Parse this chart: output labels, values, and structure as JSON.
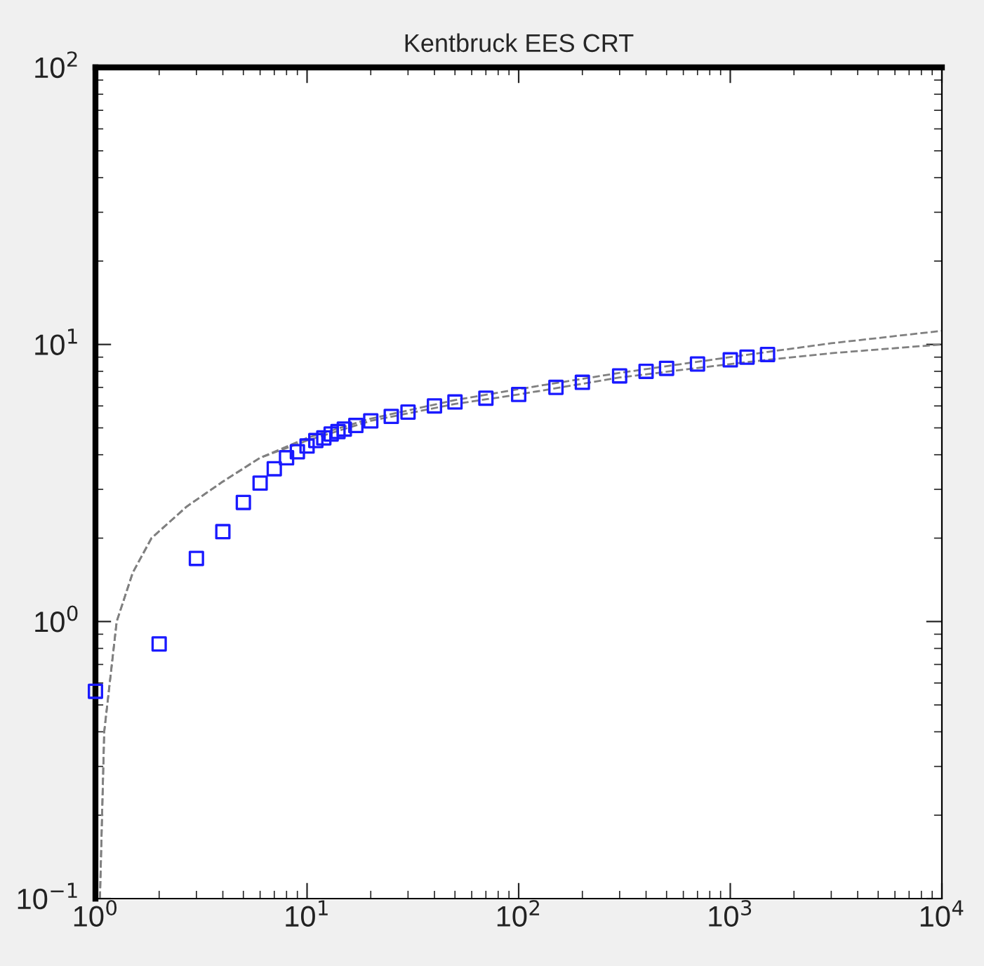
{
  "chart_data": {
    "type": "scatter",
    "title": "Kentbruck EES CRT",
    "log": "xy",
    "grid": false,
    "legend": false,
    "xlim": [
      1,
      10000
    ],
    "ylim": [
      0.1,
      100
    ],
    "xticks": [
      {
        "value": 1,
        "label": "10$^{0}$"
      },
      {
        "value": 10,
        "label": "10$^{1}$"
      },
      {
        "value": 100,
        "label": "10$^{2}$"
      },
      {
        "value": 1000,
        "label": "10$^{3}$"
      },
      {
        "value": 10000,
        "label": "10$^{4}$"
      }
    ],
    "yticks": [
      {
        "value": 0.1,
        "label": "10$^{−1}$"
      },
      {
        "value": 1,
        "label": "10$^{0}$"
      },
      {
        "value": 10,
        "label": "10$^{1}$"
      },
      {
        "value": 100,
        "label": "10$^{2}$"
      }
    ],
    "series": [
      {
        "marker": "square",
        "color": "#1a1aff",
        "x": [
          1,
          2,
          3,
          4,
          5,
          6,
          7,
          8,
          9,
          10,
          11,
          12,
          13,
          14,
          15,
          17,
          20,
          25,
          30,
          40,
          50,
          70,
          100,
          150,
          200,
          300,
          400,
          500,
          700,
          1000,
          1200,
          1500
        ],
        "values": [
          0.56,
          0.83,
          1.69,
          2.11,
          2.69,
          3.16,
          3.56,
          3.9,
          4.1,
          4.3,
          4.5,
          4.6,
          4.75,
          4.85,
          4.95,
          5.1,
          5.3,
          5.5,
          5.7,
          6.0,
          6.2,
          6.4,
          6.6,
          7.0,
          7.3,
          7.7,
          8.0,
          8.2,
          8.5,
          8.8,
          9.0,
          9.2
        ]
      },
      {
        "type": "line",
        "line_style": "dashed",
        "marker": "none",
        "color": "#808080",
        "x": [
          1.05,
          1.1,
          1.26,
          1.5,
          1.84,
          2.7,
          4,
          6,
          10,
          20,
          50,
          100,
          300,
          1000,
          1500,
          3000,
          10000
        ],
        "values": [
          0.1,
          0.4,
          1.0,
          1.5,
          2.0,
          2.6,
          3.2,
          3.9,
          4.6,
          5.4,
          6.3,
          6.9,
          7.9,
          9.0,
          9.4,
          10.1,
          11.2
        ]
      },
      {
        "type": "line",
        "line_style": "dashed",
        "marker": "none",
        "color": "#808080",
        "x": [
          1.05,
          1.1,
          1.26,
          1.5,
          1.84,
          2.7,
          4,
          6,
          10,
          20,
          50,
          100,
          300,
          1000,
          1500,
          3000,
          10000
        ],
        "values": [
          0.1,
          0.4,
          1.0,
          1.5,
          2.0,
          2.6,
          3.2,
          3.9,
          4.5,
          5.3,
          6.1,
          6.6,
          7.6,
          8.5,
          8.8,
          9.3,
          10.0
        ]
      }
    ]
  }
}
